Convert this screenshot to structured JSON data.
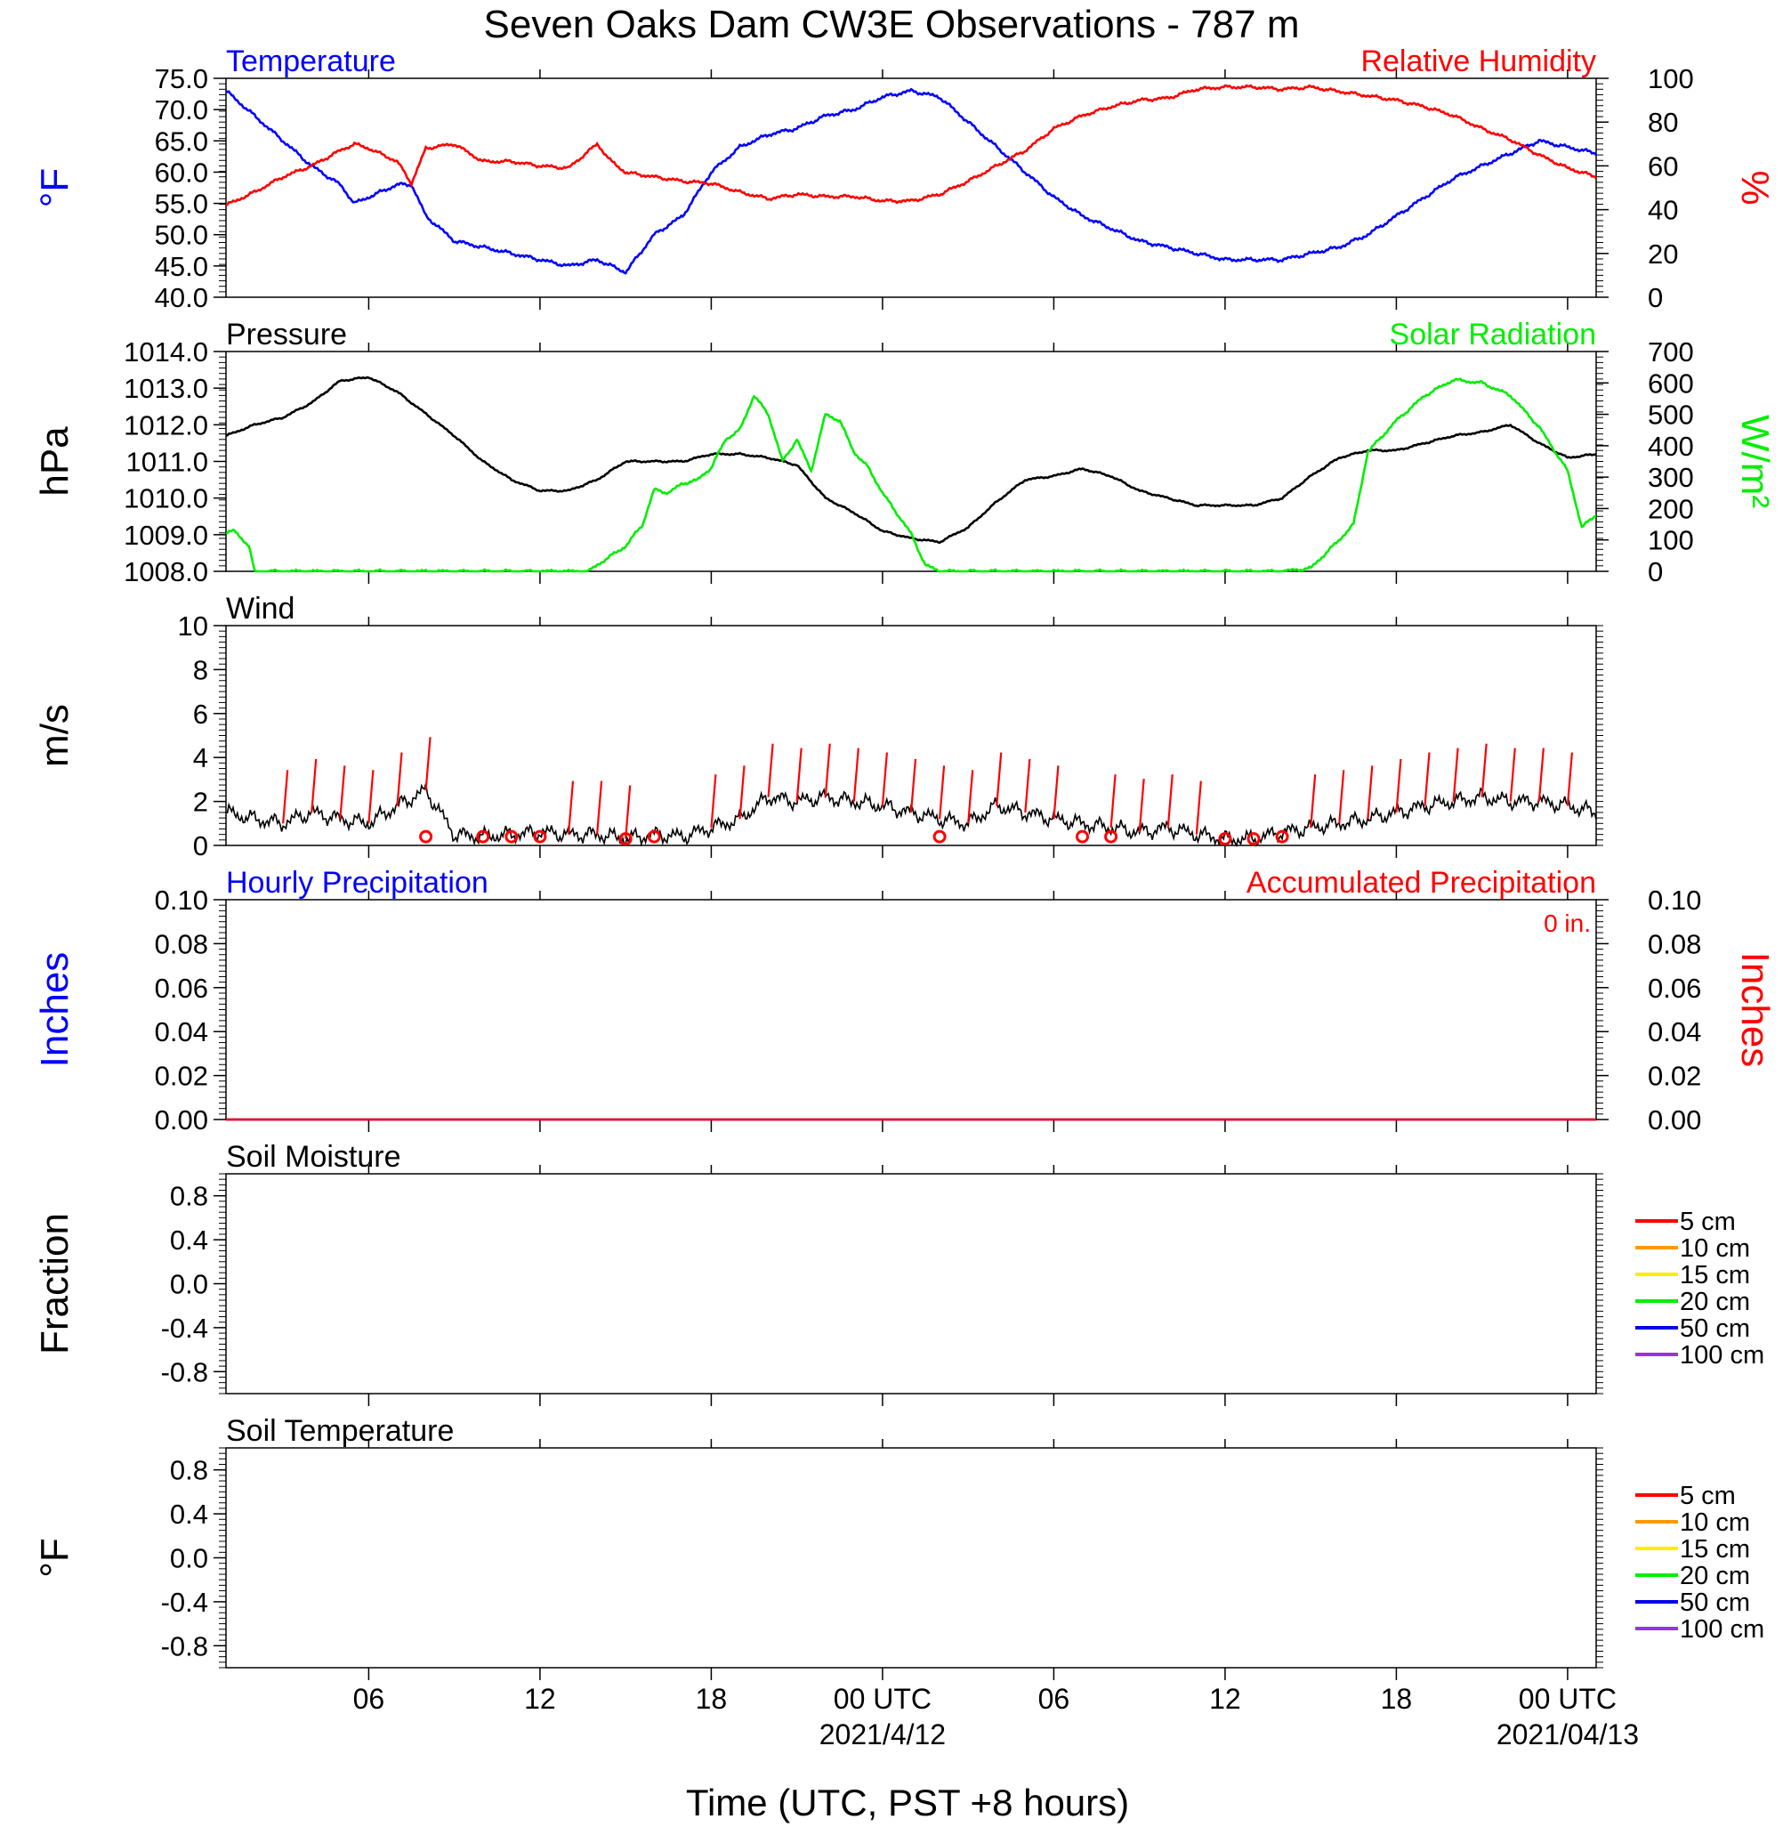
{
  "title": "Seven Oaks Dam CW3E Observations - 787 m",
  "colors": {
    "temperature": "#0000ff",
    "humidity": "#ff0000",
    "pressure": "#000000",
    "solar": "#00ee00",
    "wind": "#000000",
    "barb": "#ff0000",
    "hourly_precip": "#0000ff",
    "accum_precip": "#ff0000",
    "soil": [
      "#ff0000",
      "#ff9900",
      "#ffee00",
      "#00ee00",
      "#0000ee",
      "#9933dd"
    ]
  },
  "x_axis": {
    "title": "Time (UTC, PST +8 hours)",
    "range_hours": [
      0,
      48
    ],
    "tick_labels": [
      "06",
      "12",
      "18",
      "00 UTC",
      "06",
      "12",
      "18",
      "00 UTC"
    ],
    "tick_hours": [
      5,
      11,
      17,
      23,
      29,
      35,
      41,
      47
    ],
    "date_labels": [
      "2021/4/12",
      "2021/04/13"
    ],
    "date_label_hours": [
      23,
      47
    ]
  },
  "chart_data": [
    {
      "type": "line",
      "name": "temperature-humidity",
      "title_left": "Temperature",
      "title_right": "Relative Humidity",
      "ylabel_left": "°F",
      "ylabel_right": "%",
      "ylim_left": [
        40,
        75
      ],
      "ylim_right": [
        0,
        100
      ],
      "yticks_left": [
        "75.0",
        "70.0",
        "65.0",
        "60.0",
        "55.0",
        "50.0",
        "45.0",
        "40.0"
      ],
      "yticks_right": [
        "100",
        "80",
        "60",
        "40",
        "20",
        "0"
      ],
      "series": [
        {
          "name": "Temperature",
          "axis": "left",
          "x": [
            0,
            1,
            2,
            3,
            4,
            4.5,
            5,
            6,
            6.5,
            7,
            8,
            9,
            10,
            11,
            12,
            13,
            13.5,
            14,
            15,
            16,
            17,
            18,
            19,
            20,
            21,
            22,
            23,
            24,
            25,
            26,
            27,
            28,
            29,
            30,
            31,
            32,
            33,
            34,
            35,
            36,
            37,
            38,
            39,
            40,
            41,
            42,
            43,
            44,
            45,
            46,
            47,
            48
          ],
          "y": [
            73,
            69,
            65,
            61,
            58,
            55,
            56,
            58,
            58,
            53,
            49,
            48,
            47,
            46,
            45,
            46,
            45,
            44,
            50,
            53,
            60,
            64,
            66,
            67,
            69,
            70,
            72,
            73,
            72,
            68,
            64,
            60,
            56,
            53,
            51,
            49,
            48,
            47,
            46,
            46,
            46,
            47,
            48,
            50,
            53,
            56,
            59,
            61,
            63,
            65,
            64,
            63
          ]
        },
        {
          "name": "Relative Humidity",
          "axis": "right",
          "x": [
            0,
            1,
            2,
            3,
            4,
            4.5,
            5,
            6,
            6.5,
            7,
            8,
            9,
            10,
            11,
            12,
            13,
            13.5,
            14,
            15,
            16,
            17,
            18,
            19,
            20,
            21,
            22,
            23,
            24,
            25,
            26,
            27,
            28,
            29,
            30,
            31,
            32,
            33,
            34,
            35,
            36,
            37,
            38,
            39,
            40,
            41,
            42,
            43,
            44,
            45,
            46,
            47,
            48
          ],
          "y": [
            42,
            48,
            55,
            60,
            67,
            70,
            68,
            62,
            52,
            68,
            70,
            62,
            62,
            60,
            59,
            70,
            62,
            57,
            55,
            53,
            52,
            48,
            45,
            47,
            46,
            46,
            44,
            44,
            47,
            53,
            60,
            67,
            77,
            83,
            87,
            90,
            91,
            95,
            96,
            96,
            95,
            96,
            94,
            92,
            90,
            87,
            83,
            77,
            72,
            65,
            59,
            55
          ]
        }
      ]
    },
    {
      "type": "line",
      "name": "pressure-solar",
      "title_left": "Pressure",
      "title_right": "Solar Radiation",
      "ylabel_left": "hPa",
      "ylabel_right": "W/m²",
      "ylim_left": [
        1008,
        1014
      ],
      "ylim_right": [
        0,
        700
      ],
      "yticks_left": [
        "1014.0",
        "1013.0",
        "1012.0",
        "1011.0",
        "1010.0",
        "1009.0",
        "1008.0"
      ],
      "yticks_right": [
        "700",
        "600",
        "500",
        "400",
        "300",
        "200",
        "100",
        "0"
      ],
      "series": [
        {
          "name": "Pressure",
          "axis": "left",
          "x": [
            0,
            1,
            2,
            3,
            4,
            5,
            6,
            7,
            8,
            9,
            10,
            11,
            12,
            13,
            14,
            15,
            16,
            17,
            18,
            19,
            20,
            21,
            22,
            23,
            24,
            25,
            26,
            27,
            28,
            29,
            30,
            31,
            32,
            33,
            34,
            35,
            36,
            37,
            38,
            39,
            40,
            41,
            42,
            43,
            44,
            45,
            46,
            47,
            48
          ],
          "y": [
            1011.7,
            1012.0,
            1012.2,
            1012.6,
            1013.2,
            1013.3,
            1012.9,
            1012.3,
            1011.7,
            1011.0,
            1010.5,
            1010.2,
            1010.2,
            1010.5,
            1011.0,
            1011.0,
            1011.0,
            1011.2,
            1011.2,
            1011.1,
            1010.9,
            1010.0,
            1009.6,
            1009.1,
            1008.9,
            1008.8,
            1009.2,
            1009.9,
            1010.5,
            1010.6,
            1010.8,
            1010.6,
            1010.2,
            1010.0,
            1009.8,
            1009.8,
            1009.8,
            1010.0,
            1010.6,
            1011.1,
            1011.3,
            1011.3,
            1011.5,
            1011.7,
            1011.8,
            1012.0,
            1011.5,
            1011.1,
            1011.2
          ]
        },
        {
          "name": "Solar Radiation",
          "axis": "right",
          "x": [
            0,
            0.3,
            0.8,
            1,
            2,
            3,
            4,
            5,
            6,
            7,
            8,
            9,
            10,
            11,
            12,
            12.7,
            13,
            14,
            14.6,
            15,
            15.5,
            16,
            16.5,
            17,
            17.5,
            18,
            18.5,
            19,
            19.5,
            20,
            20.5,
            21,
            21.5,
            22,
            22.5,
            23,
            24,
            24.5,
            25,
            30,
            35,
            37,
            38,
            39,
            39.5,
            40,
            41,
            42,
            43,
            44,
            45,
            46,
            47,
            47.5,
            48
          ],
          "y": [
            120,
            130,
            80,
            0,
            0,
            0,
            0,
            0,
            0,
            0,
            0,
            0,
            0,
            0,
            0,
            0,
            20,
            80,
            150,
            260,
            250,
            280,
            290,
            330,
            420,
            450,
            560,
            500,
            350,
            420,
            320,
            500,
            480,
            380,
            330,
            250,
            120,
            20,
            0,
            0,
            0,
            0,
            10,
            100,
            150,
            380,
            480,
            560,
            610,
            600,
            560,
            460,
            320,
            140,
            180
          ]
        }
      ]
    },
    {
      "type": "line",
      "name": "wind",
      "title_left": "Wind",
      "ylabel_left": "m/s",
      "ylim": [
        0,
        10
      ],
      "yticks_left": [
        "10",
        "8",
        "6",
        "4",
        "2",
        "0"
      ],
      "series": [
        {
          "name": "Wind",
          "axis": "left",
          "x": [
            0,
            1,
            2,
            3,
            4,
            5,
            6,
            7,
            8,
            9,
            10,
            11,
            12,
            13,
            14,
            15,
            16,
            17,
            18,
            19,
            20,
            21,
            22,
            23,
            24,
            25,
            26,
            27,
            28,
            29,
            30,
            31,
            32,
            33,
            34,
            35,
            36,
            37,
            38,
            39,
            40,
            41,
            42,
            43,
            44,
            45,
            46,
            47,
            48
          ],
          "y": [
            1.5,
            1.2,
            1.0,
            1.5,
            1.2,
            1.0,
            1.8,
            2.5,
            0.5,
            0.4,
            0.5,
            0.6,
            0.5,
            0.5,
            0.3,
            0.5,
            0.4,
            0.8,
            1.2,
            2.2,
            2.0,
            2.2,
            2.0,
            1.8,
            1.5,
            1.2,
            1.0,
            1.8,
            1.5,
            1.2,
            1.0,
            0.8,
            0.6,
            0.8,
            0.5,
            0.3,
            0.3,
            0.6,
            0.8,
            1.0,
            1.2,
            1.5,
            1.8,
            2.0,
            2.2,
            2.0,
            2.0,
            1.8,
            1.5
          ]
        }
      ],
      "barb_hours": [
        2,
        3,
        4,
        5,
        6,
        7,
        12,
        13,
        14,
        17,
        18,
        19,
        20,
        21,
        22,
        23,
        24,
        25,
        26,
        27,
        28,
        29,
        31,
        32,
        33,
        34,
        38,
        39,
        40,
        41,
        42,
        43,
        44,
        45,
        46,
        47
      ],
      "calm_hours": [
        7,
        9,
        10,
        11,
        14,
        15,
        25,
        30,
        31,
        35,
        36,
        37
      ]
    },
    {
      "type": "line",
      "name": "precipitation",
      "title_left": "Hourly Precipitation",
      "title_right": "Accumulated Precipitation",
      "annotation": "0 in.",
      "ylabel_left": "Inches",
      "ylabel_right": "Inches",
      "ylim": [
        0,
        0.1
      ],
      "yticks_left": [
        "0.10",
        "0.08",
        "0.06",
        "0.04",
        "0.02",
        "0.00"
      ],
      "yticks_right": [
        "0.10",
        "0.08",
        "0.06",
        "0.04",
        "0.02",
        "0.00"
      ],
      "series": [
        {
          "name": "Hourly Precipitation",
          "axis": "left",
          "x": [
            0,
            48
          ],
          "y": [
            0,
            0
          ]
        },
        {
          "name": "Accumulated Precipitation",
          "axis": "right",
          "x": [
            0,
            48
          ],
          "y": [
            0,
            0
          ]
        }
      ]
    },
    {
      "type": "line",
      "name": "soil-moisture",
      "title_left": "Soil Moisture",
      "ylabel_left": "Fraction",
      "ylim": [
        -1,
        1
      ],
      "yticks_left": [
        "0.8",
        "0.4",
        "0.0",
        "-0.4",
        "-0.8"
      ],
      "legend": [
        "5 cm",
        "10 cm",
        "15 cm",
        "20 cm",
        "50 cm",
        "100 cm"
      ],
      "series": []
    },
    {
      "type": "line",
      "name": "soil-temperature",
      "title_left": "Soil Temperature",
      "ylabel_left": "°F",
      "ylim": [
        -1,
        1
      ],
      "yticks_left": [
        "0.8",
        "0.4",
        "0.0",
        "-0.4",
        "-0.8"
      ],
      "legend": [
        "5 cm",
        "10 cm",
        "15 cm",
        "20 cm",
        "50 cm",
        "100 cm"
      ],
      "series": []
    }
  ]
}
